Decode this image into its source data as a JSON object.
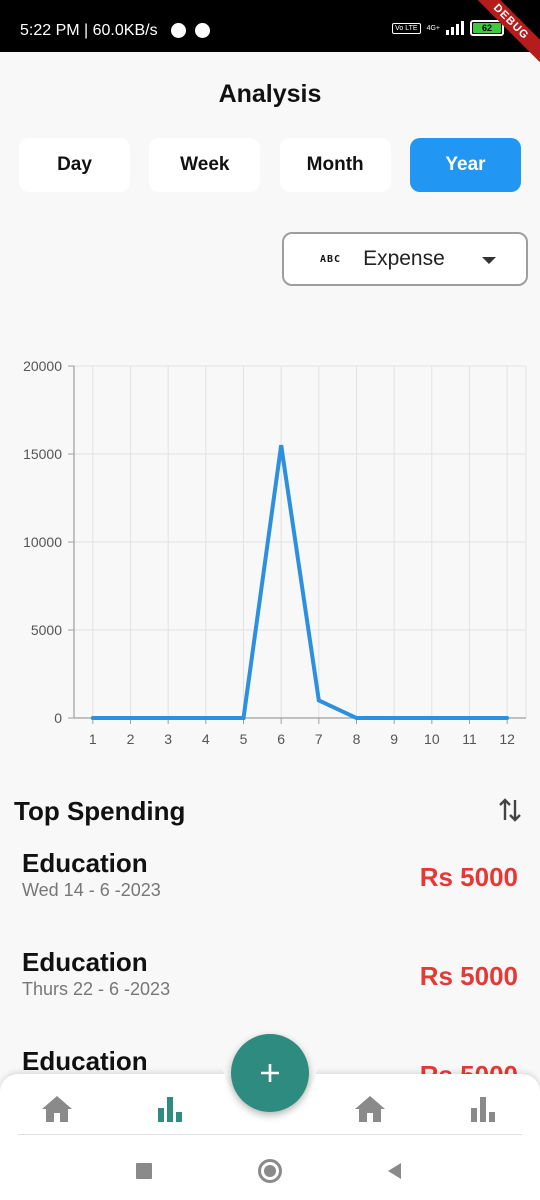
{
  "status_bar": {
    "time_speed": "5:22 PM | 60.0KB/s",
    "network": "4G+",
    "volte": "Vo LTE",
    "battery": "62",
    "debug_banner": "DEBUG"
  },
  "header": {
    "title": "Analysis"
  },
  "period_tabs": [
    {
      "label": "Day",
      "active": false
    },
    {
      "label": "Week",
      "active": false
    },
    {
      "label": "Month",
      "active": false
    },
    {
      "label": "Year",
      "active": true
    }
  ],
  "type_filter": {
    "icon_text": "ABC",
    "value": "Expense"
  },
  "chart_data": {
    "type": "line",
    "x": [
      1,
      2,
      3,
      4,
      5,
      6,
      7,
      8,
      9,
      10,
      11,
      12
    ],
    "series": [
      {
        "values": [
          0,
          0,
          0,
          0,
          0,
          15500,
          1000,
          0,
          0,
          0,
          0,
          0
        ]
      }
    ],
    "ylim": [
      0,
      20000
    ],
    "yticks": [
      0,
      5000,
      10000,
      15000,
      20000
    ],
    "grid": true,
    "color": "#2d8fe0"
  },
  "top_spending": {
    "title": "Top Spending",
    "items": [
      {
        "name": "Education",
        "date": "Wed 14 - 6 -2023",
        "amount": "Rs 5000"
      },
      {
        "name": "Education",
        "date": "Thurs 22 - 6 -2023",
        "amount": "Rs 5000"
      },
      {
        "name": "Education",
        "date": "",
        "amount": "Rs 5000"
      }
    ]
  },
  "bottom_nav": {
    "items": [
      "home-icon",
      "bar-chart-icon",
      "home-icon",
      "bar-chart-icon"
    ],
    "fab_icon": "plus-icon",
    "accent": "#2e8b80"
  },
  "colors": {
    "primary": "#2196f3",
    "expense": "#e53935"
  }
}
